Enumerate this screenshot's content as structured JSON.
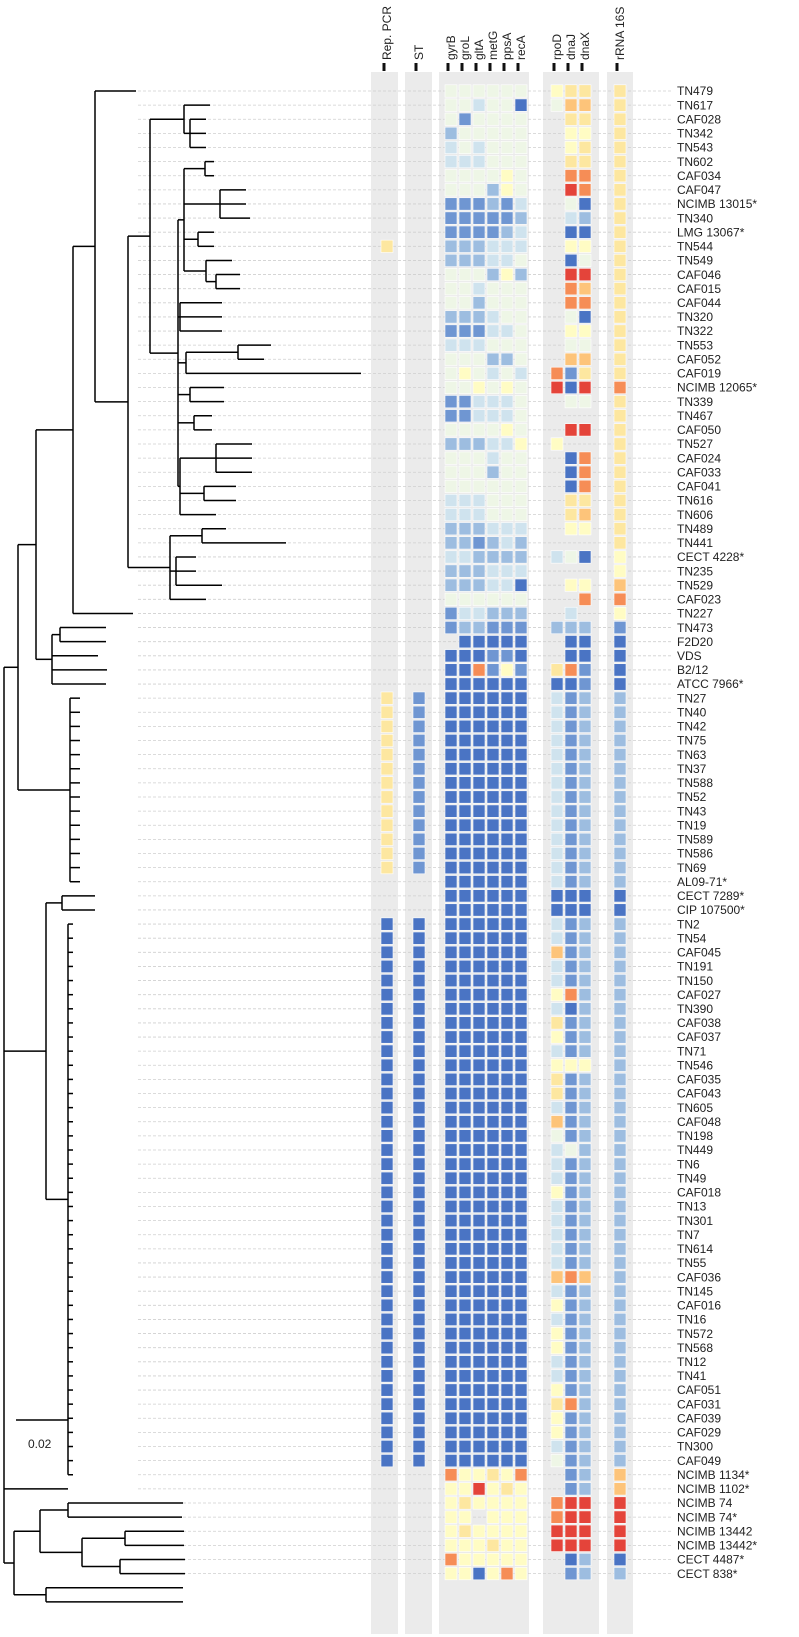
{
  "figure": {
    "type": "phylogenetic tree with strain labels and heatmap annotation columns",
    "scale_bar_label": "0.02",
    "column_groups": [
      {
        "name": "rep-pcr",
        "headers": [
          "Rep. PCR"
        ]
      },
      {
        "name": "st",
        "headers": [
          "ST"
        ]
      },
      {
        "name": "housekeeping",
        "headers": [
          "gyrB",
          "groL",
          "gltA",
          "metG",
          "ppsA",
          "recA"
        ]
      },
      {
        "name": "extra",
        "headers": [
          "rpoD",
          "dnaJ",
          "dnaX"
        ]
      },
      {
        "name": "rrna",
        "headers": [
          "rRNA 16S"
        ]
      }
    ],
    "taxa": [
      "TN479",
      "TN617",
      "CAF028",
      "TN342",
      "TN543",
      "TN602",
      "CAF034",
      "CAF047",
      "NCIMB 13015*",
      "TN340",
      "LMG 13067*",
      "TN544",
      "TN549",
      "CAF046",
      "CAF015",
      "CAF044",
      "TN320",
      "TN322",
      "TN553",
      "CAF052",
      "CAF019",
      "NCIMB 12065*",
      "TN339",
      "TN467",
      "CAF050",
      "TN527",
      "CAF024",
      "CAF033",
      "CAF041",
      "TN616",
      "TN606",
      "TN489",
      "TN441",
      "CECT 4228*",
      "TN235",
      "TN529",
      "CAF023",
      "TN227",
      "TN473",
      "F2D20",
      "VDS",
      "B2/12",
      "ATCC 7966*",
      "TN27",
      "TN40",
      "TN42",
      "TN75",
      "TN63",
      "TN37",
      "TN588",
      "TN52",
      "TN43",
      "TN19",
      "TN589",
      "TN586",
      "TN69",
      "AL09-71*",
      "CECT 7289*",
      "CIP 107500*",
      "TN2",
      "TN54",
      "CAF045",
      "TN191",
      "TN150",
      "CAF027",
      "TN390",
      "CAF038",
      "CAF037",
      "TN71",
      "TN546",
      "CAF035",
      "CAF043",
      "TN605",
      "CAF048",
      "TN198",
      "TN449",
      "TN6",
      "TN49",
      "CAF018",
      "TN13",
      "TN301",
      "TN7",
      "TN614",
      "TN55",
      "CAF036",
      "TN145",
      "CAF016",
      "TN16",
      "TN572",
      "TN568",
      "TN12",
      "TN41",
      "CAF051",
      "CAF031",
      "CAF039",
      "CAF029",
      "TN300",
      "CAF049",
      "NCIMB 1134*",
      "NCIMB 1102*",
      "NCIMB 74",
      "NCIMB 74*",
      "NCIMB 13442",
      "NCIMB 13442*",
      "CECT 4487*",
      "CECT 838*"
    ],
    "heatmap_palette": [
      "#ffffff",
      "#4a74c4",
      "#6f96d2",
      "#9dbde0",
      "#cfe3ee",
      "#eef6e6",
      "#fffcc4",
      "#fde7a0",
      "#fdc47a",
      "#f68d56",
      "#e4443a"
    ]
  }
}
